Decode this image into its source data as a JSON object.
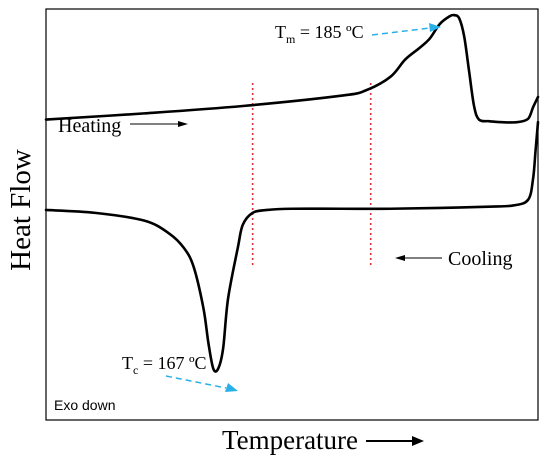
{
  "chart_data": {
    "type": "line",
    "title": "",
    "xlabel": "Temperature",
    "ylabel": "Heat Flow",
    "note": "Exo down",
    "xlim": [
      0,
      100
    ],
    "ylim": [
      0,
      100
    ],
    "grid": false,
    "series": [
      {
        "name": "Heating",
        "color": "#000000",
        "points": [
          [
            0,
            73.1
          ],
          [
            20,
            74.6
          ],
          [
            40,
            76.4
          ],
          [
            60,
            78.9
          ],
          [
            65,
            80.2
          ],
          [
            70,
            83.5
          ],
          [
            73,
            87.7
          ],
          [
            76,
            90.6
          ],
          [
            78,
            92.8
          ],
          [
            80,
            96.3
          ],
          [
            82,
            98.2
          ],
          [
            83,
            98.5
          ],
          [
            84,
            97.7
          ],
          [
            85,
            93.3
          ],
          [
            86,
            84.8
          ],
          [
            87,
            76.4
          ],
          [
            88,
            73.1
          ],
          [
            90,
            72.7
          ],
          [
            92,
            72.5
          ],
          [
            94,
            72.4
          ],
          [
            96,
            72.5
          ],
          [
            98,
            73.3
          ],
          [
            99,
            76.1
          ],
          [
            100,
            78.6
          ]
        ]
      },
      {
        "name": "Cooling",
        "color": "#000000",
        "points": [
          [
            0,
            51.1
          ],
          [
            10,
            50.4
          ],
          [
            20,
            48.5
          ],
          [
            25,
            45.4
          ],
          [
            28,
            41.9
          ],
          [
            30,
            37.3
          ],
          [
            32,
            27.2
          ],
          [
            33,
            18.8
          ],
          [
            34,
            12.5
          ],
          [
            35,
            12.5
          ],
          [
            36,
            17.4
          ],
          [
            37,
            29.5
          ],
          [
            39,
            42.0
          ],
          [
            40,
            47.5
          ],
          [
            42,
            50.4
          ],
          [
            45,
            51.1
          ],
          [
            50,
            51.4
          ],
          [
            60,
            51.4
          ],
          [
            70,
            51.4
          ],
          [
            80,
            51.6
          ],
          [
            90,
            51.9
          ],
          [
            95,
            52.2
          ],
          [
            98,
            53.6
          ],
          [
            99,
            58.7
          ],
          [
            99.5,
            65.5
          ],
          [
            100,
            72.5
          ]
        ]
      }
    ],
    "vlines": [
      {
        "x": 42,
        "color": "#e0303a"
      },
      {
        "x": 66,
        "color": "#e0303a"
      }
    ],
    "annotations": [
      {
        "symbol": "T",
        "subscript": "m",
        "rest": " = 185 ºC",
        "point": [
          83,
          98.5
        ]
      },
      {
        "symbol": "T",
        "subscript": "c",
        "rest": " = 167 ºC",
        "point": [
          35,
          12.5
        ]
      }
    ],
    "labels": [
      {
        "text": "Heating",
        "arrow": "right"
      },
      {
        "text": "Cooling",
        "arrow": "left"
      }
    ],
    "colors": {
      "curve": "#000000",
      "marker_lines": "#e0303a",
      "annotation_arrows": "#2ab0e8"
    }
  }
}
